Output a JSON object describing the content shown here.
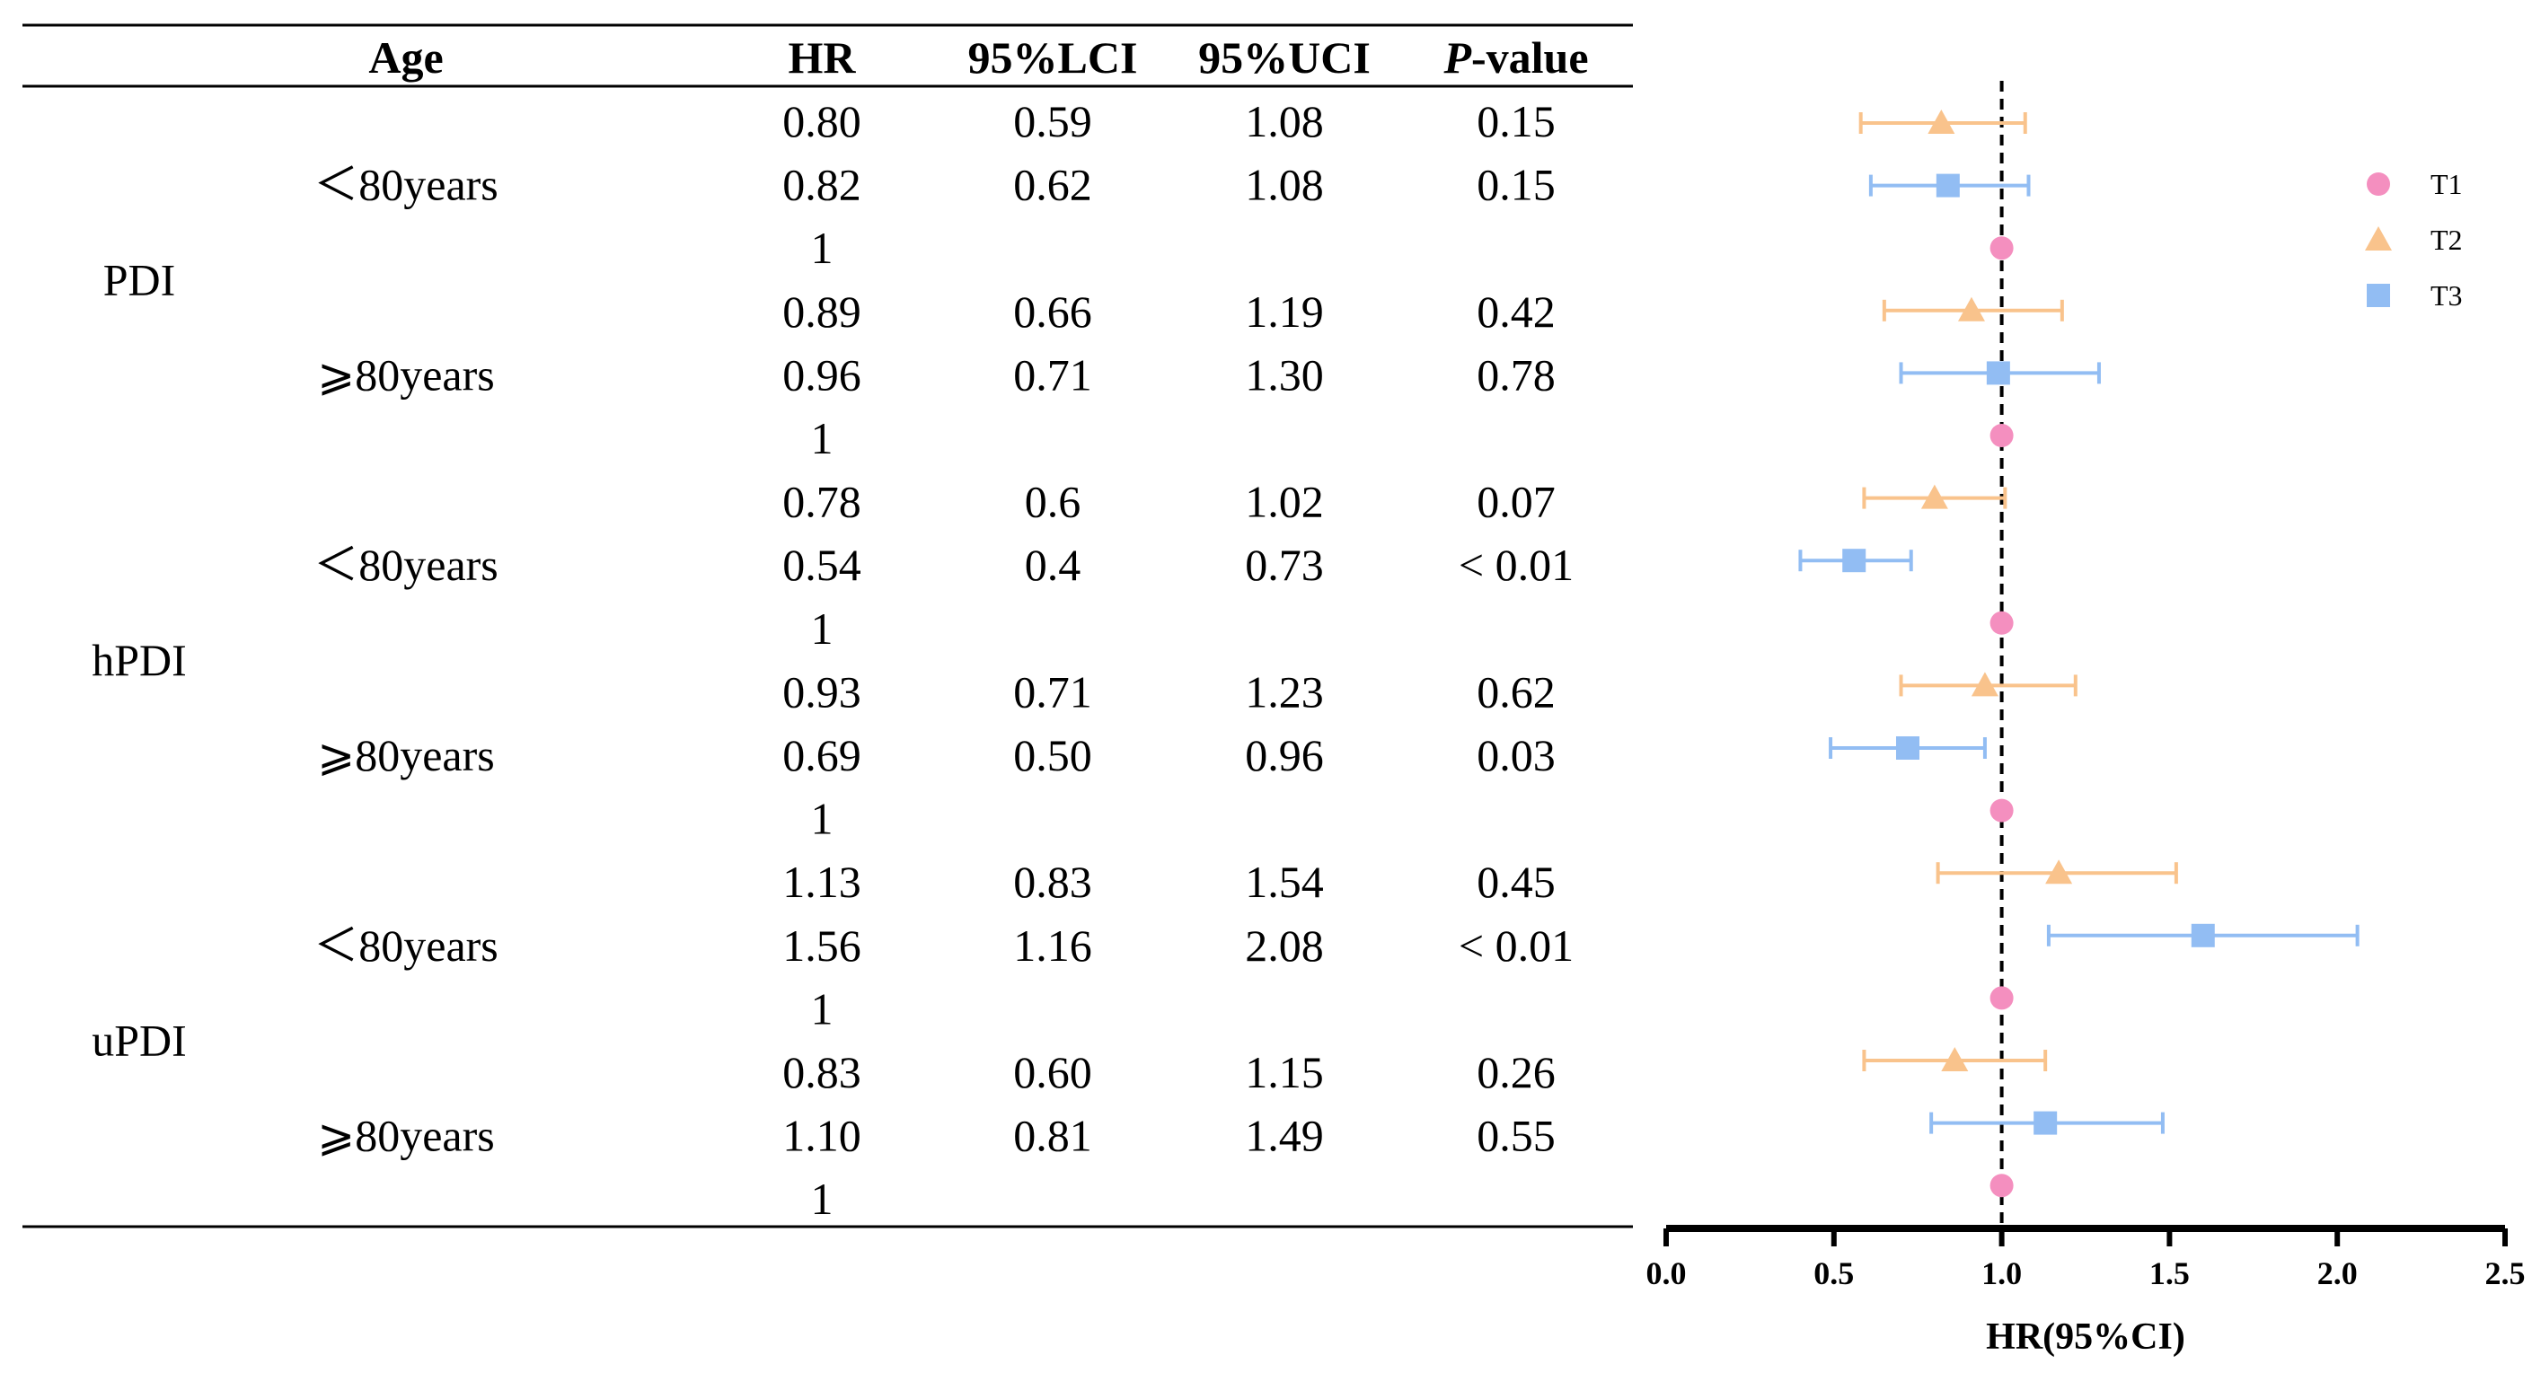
{
  "table": {
    "headers": {
      "age": "Age",
      "hr": "HR",
      "lci": "95%LCI",
      "uci": "95%UCI",
      "p_italic": "P",
      "p_rest": "-value"
    },
    "groups": [
      {
        "label": "PDI",
        "subgroups": [
          {
            "label": "＜80years",
            "rows": [
              {
                "hr": "0.80",
                "lci": "0.59",
                "uci": "1.08",
                "p": "0.15"
              },
              {
                "hr": "0.82",
                "lci": "0.62",
                "uci": "1.08",
                "p": "0.15"
              },
              {
                "hr": "1",
                "lci": "",
                "uci": "",
                "p": ""
              }
            ]
          },
          {
            "label": "⩾80years",
            "rows": [
              {
                "hr": "0.89",
                "lci": "0.66",
                "uci": "1.19",
                "p": "0.42"
              },
              {
                "hr": "0.96",
                "lci": "0.71",
                "uci": "1.30",
                "p": "0.78"
              },
              {
                "hr": "1",
                "lci": "",
                "uci": "",
                "p": ""
              }
            ]
          }
        ]
      },
      {
        "label": "hPDI",
        "subgroups": [
          {
            "label": "＜80years",
            "rows": [
              {
                "hr": "0.78",
                "lci": "0.6",
                "uci": "1.02",
                "p": "0.07"
              },
              {
                "hr": "0.54",
                "lci": "0.4",
                "uci": "0.73",
                "p": "< 0.01"
              },
              {
                "hr": "1",
                "lci": "",
                "uci": "",
                "p": ""
              }
            ]
          },
          {
            "label": "⩾80years",
            "rows": [
              {
                "hr": "0.93",
                "lci": "0.71",
                "uci": "1.23",
                "p": "0.62"
              },
              {
                "hr": "0.69",
                "lci": "0.50",
                "uci": "0.96",
                "p": "0.03"
              },
              {
                "hr": "1",
                "lci": "",
                "uci": "",
                "p": ""
              }
            ]
          }
        ]
      },
      {
        "label": "uPDI",
        "subgroups": [
          {
            "label": "＜80years",
            "rows": [
              {
                "hr": "1.13",
                "lci": "0.83",
                "uci": "1.54",
                "p": "0.45"
              },
              {
                "hr": "1.56",
                "lci": "1.16",
                "uci": "2.08",
                "p": "< 0.01"
              },
              {
                "hr": "1",
                "lci": "",
                "uci": "",
                "p": ""
              }
            ]
          },
          {
            "label": "⩾80years",
            "rows": [
              {
                "hr": "0.83",
                "lci": "0.60",
                "uci": "1.15",
                "p": "0.26"
              },
              {
                "hr": "1.10",
                "lci": "0.81",
                "uci": "1.49",
                "p": "0.55"
              },
              {
                "hr": "1",
                "lci": "",
                "uci": "",
                "p": ""
              }
            ]
          }
        ]
      }
    ]
  },
  "chart_data": {
    "type": "scatter",
    "subtype": "forest-plot",
    "xlabel": "HR(95%CI)",
    "xlim": [
      0.0,
      2.5
    ],
    "xticks": [
      "0.0",
      "0.5",
      "1.0",
      "1.5",
      "2.0",
      "2.5"
    ],
    "reference_line": 1.0,
    "legend": [
      {
        "name": "T1",
        "color": "#f48fbf",
        "marker": "circle"
      },
      {
        "name": "T2",
        "color": "#f9c38c",
        "marker": "triangle"
      },
      {
        "name": "T3",
        "color": "#92bdf3",
        "marker": "square"
      }
    ],
    "points": [
      {
        "series": "T2",
        "hr": 0.82,
        "lci": 0.58,
        "uci": 1.07
      },
      {
        "series": "T3",
        "hr": 0.84,
        "lci": 0.61,
        "uci": 1.08
      },
      {
        "series": "T1",
        "hr": 1.0
      },
      {
        "series": "T2",
        "hr": 0.91,
        "lci": 0.65,
        "uci": 1.18
      },
      {
        "series": "T3",
        "hr": 0.99,
        "lci": 0.7,
        "uci": 1.29
      },
      {
        "series": "T1",
        "hr": 1.0
      },
      {
        "series": "T2",
        "hr": 0.8,
        "lci": 0.59,
        "uci": 1.01
      },
      {
        "series": "T3",
        "hr": 0.56,
        "lci": 0.4,
        "uci": 0.73
      },
      {
        "series": "T1",
        "hr": 1.0
      },
      {
        "series": "T2",
        "hr": 0.95,
        "lci": 0.7,
        "uci": 1.22
      },
      {
        "series": "T3",
        "hr": 0.72,
        "lci": 0.49,
        "uci": 0.95
      },
      {
        "series": "T1",
        "hr": 1.0
      },
      {
        "series": "T2",
        "hr": 1.17,
        "lci": 0.81,
        "uci": 1.52
      },
      {
        "series": "T3",
        "hr": 1.6,
        "lci": 1.14,
        "uci": 2.06
      },
      {
        "series": "T1",
        "hr": 1.0
      },
      {
        "series": "T2",
        "hr": 0.86,
        "lci": 0.59,
        "uci": 1.13
      },
      {
        "series": "T3",
        "hr": 1.13,
        "lci": 0.79,
        "uci": 1.48
      },
      {
        "series": "T1",
        "hr": 1.0
      }
    ]
  }
}
